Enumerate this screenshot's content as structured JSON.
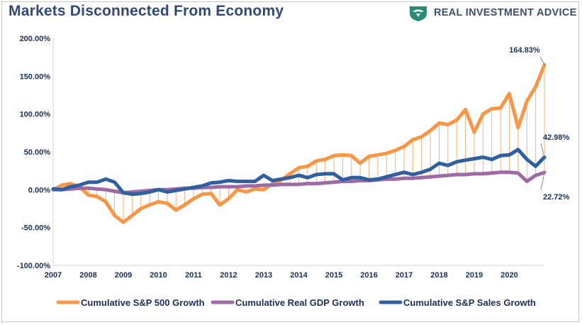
{
  "header": {
    "title": "Markets Disconnected From Economy",
    "brand_name": "REAL INVESTMENT ADVICE"
  },
  "chart_data": {
    "type": "line",
    "x_start": 2007.0,
    "x_step": 0.25,
    "xlim": [
      2007,
      2021
    ],
    "ylim": [
      -100,
      200
    ],
    "y_ticks": [
      "200.00%",
      "150.00%",
      "100.00%",
      "50.00%",
      "0.00%",
      "-50.00%",
      "-100.00%"
    ],
    "y_tick_values": [
      200,
      150,
      100,
      50,
      0,
      -50,
      -100
    ],
    "x_ticks": [
      "2007",
      "2008",
      "2009",
      "2010",
      "2011",
      "2012",
      "2013",
      "2014",
      "2015",
      "2016",
      "2017",
      "2018",
      "2019",
      "2020"
    ],
    "x_tick_values": [
      2007,
      2008,
      2009,
      2010,
      2011,
      2012,
      2013,
      2014,
      2015,
      2016,
      2017,
      2018,
      2019,
      2020
    ],
    "grid": false,
    "legend_position": "bottom",
    "drop_lines": true,
    "series": [
      {
        "name": "Cumulative S&P 500 Growth",
        "color": "#f79646",
        "values": [
          0,
          6,
          8,
          4,
          -7,
          -9,
          -16,
          -34,
          -43,
          -34,
          -25,
          -20,
          -16,
          -18,
          -27,
          -20,
          -12,
          -6,
          -5,
          -20,
          -12,
          0,
          -3,
          1,
          0,
          8,
          13,
          21,
          29,
          31,
          38,
          40,
          45,
          46,
          45,
          35,
          44,
          46,
          48,
          52,
          57,
          66,
          70,
          78,
          88,
          86,
          92,
          106,
          76,
          100,
          107,
          108,
          127,
          82,
          117,
          136,
          165
        ]
      },
      {
        "name": "Cumulative Real GDP Growth",
        "color": "#9e6aa5",
        "values": [
          0,
          0,
          1,
          2,
          2,
          1,
          0,
          -2,
          -4,
          -3,
          -2,
          -1,
          0,
          0,
          1,
          2,
          2,
          3,
          3,
          4,
          4,
          4,
          5,
          5,
          6,
          6,
          7,
          7,
          7,
          8,
          8,
          9,
          10,
          11,
          11,
          12,
          12,
          13,
          14,
          14,
          15,
          15,
          16,
          17,
          18,
          19,
          20,
          20,
          21,
          21,
          22,
          23,
          23,
          22,
          11,
          19,
          22.72
        ]
      },
      {
        "name": "Cumulative S&P Sales Growth",
        "color": "#2e5f9e",
        "values": [
          1,
          0,
          4,
          6,
          10,
          10,
          14,
          10,
          -4,
          -6,
          -5,
          -3,
          0,
          -3,
          -1,
          1,
          3,
          5,
          9,
          10,
          12,
          11,
          11,
          11,
          19,
          12,
          14,
          16,
          19,
          16,
          20,
          21,
          21,
          13,
          16,
          16,
          13,
          14,
          17,
          20,
          23,
          20,
          23,
          27,
          35,
          32,
          37,
          39,
          41,
          43,
          40,
          45,
          46,
          53,
          40,
          31,
          42.98
        ]
      }
    ],
    "annotations": [
      {
        "text": "164.83%",
        "series": 0
      },
      {
        "text": "42.98%",
        "series": 2
      },
      {
        "text": "22.72%",
        "series": 1
      }
    ]
  }
}
